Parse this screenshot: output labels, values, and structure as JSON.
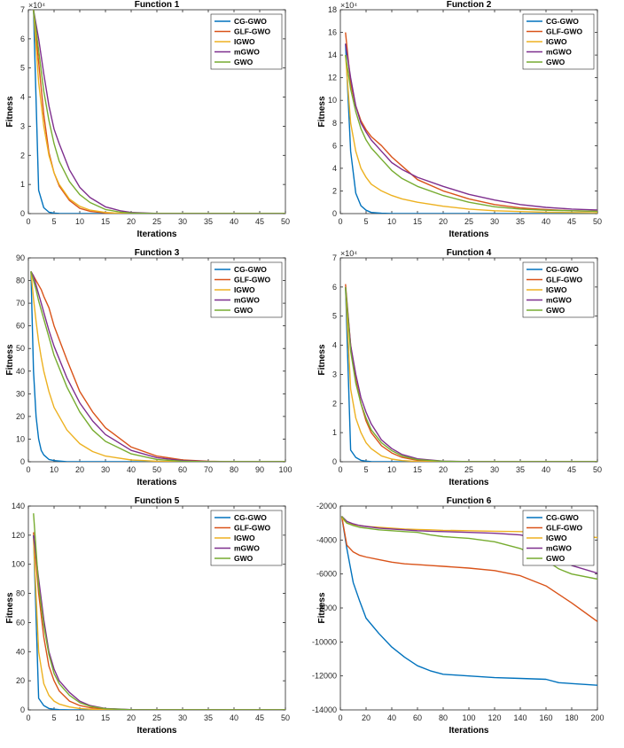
{
  "colors": {
    "CG-GWO": "#0072BD",
    "GLF-GWO": "#D95319",
    "IGWO": "#EDB120",
    "mGWO": "#7E2F8E",
    "GWO": "#77AC30"
  },
  "chart_data": [
    {
      "type": "line",
      "title": "Function 1",
      "xlabel": "Iterations",
      "ylabel": "Fitness",
      "xlim": [
        0,
        50
      ],
      "ylim": [
        0,
        70000
      ],
      "xticks": [
        0,
        5,
        10,
        15,
        20,
        25,
        30,
        35,
        40,
        45,
        50
      ],
      "yticks": [
        0,
        1,
        2,
        3,
        4,
        5,
        6,
        7
      ],
      "y_multiplier": "×10⁴",
      "legend": [
        "CG-GWO",
        "GLF-GWO",
        "IGWO",
        "mGWO",
        "GWO"
      ],
      "legend_position": "top-right",
      "x": [
        1,
        2,
        3,
        4,
        5,
        6,
        8,
        10,
        12,
        15,
        18,
        20,
        25,
        30,
        40,
        50
      ],
      "series": [
        {
          "name": "CG-GWO",
          "values": [
            70000,
            8000,
            2000,
            500,
            150,
            50,
            10,
            5,
            0,
            0,
            0,
            0,
            0,
            0,
            0,
            0
          ]
        },
        {
          "name": "GLF-GWO",
          "values": [
            70000,
            52000,
            34000,
            21000,
            14000,
            9500,
            4500,
            1800,
            800,
            200,
            50,
            20,
            0,
            0,
            0,
            0
          ]
        },
        {
          "name": "IGWO",
          "values": [
            70000,
            45000,
            30000,
            20000,
            14000,
            10000,
            5000,
            2500,
            1200,
            400,
            100,
            50,
            0,
            0,
            0,
            0
          ]
        },
        {
          "name": "mGWO",
          "values": [
            70000,
            60000,
            48000,
            37000,
            29000,
            24000,
            15000,
            9000,
            5500,
            2300,
            900,
            400,
            50,
            0,
            0,
            0
          ]
        },
        {
          "name": "GWO",
          "values": [
            70000,
            56000,
            42000,
            32000,
            24000,
            18000,
            11000,
            6500,
            3800,
            1400,
            500,
            200,
            20,
            0,
            0,
            0
          ]
        }
      ]
    },
    {
      "type": "line",
      "title": "Function 2",
      "xlabel": "Iterations",
      "ylabel": "Fitness",
      "xlim": [
        0,
        50
      ],
      "ylim": [
        0,
        180000
      ],
      "xticks": [
        0,
        5,
        10,
        15,
        20,
        25,
        30,
        35,
        40,
        45,
        50
      ],
      "yticks": [
        0,
        2,
        4,
        6,
        8,
        10,
        12,
        14,
        16,
        18
      ],
      "y_multiplier": "×10⁴",
      "legend": [
        "CG-GWO",
        "GLF-GWO",
        "IGWO",
        "mGWO",
        "GWO"
      ],
      "legend_position": "top-right",
      "x": [
        1,
        2,
        3,
        4,
        5,
        6,
        8,
        10,
        12,
        15,
        20,
        25,
        30,
        35,
        40,
        45,
        50
      ],
      "series": [
        {
          "name": "CG-GWO",
          "values": [
            150000,
            55000,
            18000,
            7000,
            3000,
            1000,
            300,
            100,
            0,
            0,
            0,
            0,
            0,
            0,
            0,
            0,
            0
          ]
        },
        {
          "name": "GLF-GWO",
          "values": [
            160000,
            115000,
            95000,
            82000,
            74000,
            68000,
            60000,
            50000,
            42000,
            30000,
            20000,
            13000,
            8000,
            5000,
            3500,
            2500,
            2000
          ]
        },
        {
          "name": "IGWO",
          "values": [
            140000,
            80000,
            55000,
            40000,
            32000,
            26000,
            20000,
            16000,
            13000,
            10000,
            6500,
            4000,
            2500,
            1800,
            1200,
            900,
            700
          ]
        },
        {
          "name": "mGWO",
          "values": [
            150000,
            120000,
            95000,
            80000,
            72000,
            65000,
            55000,
            45000,
            39000,
            32000,
            24000,
            17000,
            12000,
            8000,
            5500,
            4000,
            3200
          ]
        },
        {
          "name": "GWO",
          "values": [
            140000,
            110000,
            90000,
            75000,
            65000,
            58000,
            48000,
            38000,
            31000,
            24000,
            16000,
            10000,
            6000,
            4000,
            3000,
            2500,
            2000
          ]
        }
      ]
    },
    {
      "type": "line",
      "title": "Function 3",
      "xlabel": "Iterations",
      "ylabel": "Fitness",
      "xlim": [
        0,
        100
      ],
      "ylim": [
        0,
        90
      ],
      "xticks": [
        0,
        10,
        20,
        30,
        40,
        50,
        60,
        70,
        80,
        90,
        100
      ],
      "yticks": [
        0,
        10,
        20,
        30,
        40,
        50,
        60,
        70,
        80,
        90
      ],
      "y_multiplier": "",
      "legend": [
        "CG-GWO",
        "GLF-GWO",
        "IGWO",
        "mGWO",
        "GWO"
      ],
      "legend_position": "top-right",
      "x": [
        1,
        2,
        3,
        4,
        5,
        6,
        8,
        10,
        15,
        20,
        25,
        30,
        40,
        50,
        60,
        70,
        80,
        100
      ],
      "series": [
        {
          "name": "CG-GWO",
          "values": [
            84,
            40,
            20,
            10,
            5,
            3,
            1,
            0.5,
            0,
            0,
            0,
            0,
            0,
            0,
            0,
            0,
            0,
            0
          ]
        },
        {
          "name": "GLF-GWO",
          "values": [
            84,
            82,
            80,
            78,
            76,
            73,
            68,
            60,
            45,
            31,
            22,
            15,
            6.5,
            2.5,
            0.8,
            0.2,
            0,
            0
          ]
        },
        {
          "name": "IGWO",
          "values": [
            84,
            72,
            62,
            53,
            46,
            40,
            31,
            24,
            14,
            8,
            4.5,
            2.5,
            0.8,
            0.2,
            0,
            0,
            0,
            0
          ]
        },
        {
          "name": "mGWO",
          "values": [
            84,
            82,
            78,
            74,
            70,
            66,
            58,
            51,
            37,
            26,
            18,
            12,
            5,
            1.8,
            0.5,
            0.1,
            0,
            0
          ]
        },
        {
          "name": "GWO",
          "values": [
            84,
            80,
            76,
            71,
            67,
            63,
            55,
            47,
            33,
            22,
            14,
            9,
            3.5,
            1,
            0.2,
            0,
            0,
            0
          ]
        }
      ]
    },
    {
      "type": "line",
      "title": "Function 4",
      "xlabel": "Iterations",
      "ylabel": "Fitness",
      "xlim": [
        0,
        50
      ],
      "ylim": [
        0,
        70000
      ],
      "xticks": [
        0,
        5,
        10,
        15,
        20,
        25,
        30,
        35,
        40,
        45,
        50
      ],
      "yticks": [
        0,
        1,
        2,
        3,
        4,
        5,
        6,
        7
      ],
      "y_multiplier": "×10⁴",
      "legend": [
        "CG-GWO",
        "GLF-GWO",
        "IGWO",
        "mGWO",
        "GWO"
      ],
      "legend_position": "top-right",
      "x": [
        1,
        2,
        3,
        4,
        5,
        6,
        8,
        10,
        12,
        15,
        20,
        25,
        30,
        40,
        50
      ],
      "series": [
        {
          "name": "CG-GWO",
          "values": [
            60000,
            4000,
            1500,
            500,
            200,
            50,
            0,
            0,
            0,
            0,
            0,
            0,
            0,
            0,
            0
          ]
        },
        {
          "name": "GLF-GWO",
          "values": [
            61000,
            40000,
            28000,
            20000,
            14000,
            10000,
            5500,
            3000,
            1500,
            500,
            100,
            0,
            0,
            0,
            0
          ]
        },
        {
          "name": "IGWO",
          "values": [
            60000,
            25000,
            15000,
            10000,
            6500,
            4500,
            2000,
            900,
            400,
            100,
            0,
            0,
            0,
            0,
            0
          ]
        },
        {
          "name": "mGWO",
          "values": [
            60000,
            40000,
            30000,
            22000,
            17000,
            13000,
            7500,
            4500,
            2500,
            1000,
            200,
            50,
            0,
            0,
            0
          ]
        },
        {
          "name": "GWO",
          "values": [
            60000,
            38000,
            27000,
            20000,
            15000,
            11000,
            6500,
            3800,
            2000,
            700,
            150,
            30,
            0,
            0,
            0
          ]
        }
      ]
    },
    {
      "type": "line",
      "title": "Function 5",
      "xlabel": "Iterations",
      "ylabel": "Fitness",
      "xlim": [
        0,
        50
      ],
      "ylim": [
        0,
        140
      ],
      "xticks": [
        0,
        5,
        10,
        15,
        20,
        25,
        30,
        35,
        40,
        45,
        50
      ],
      "yticks": [
        0,
        20,
        40,
        60,
        80,
        100,
        120,
        140
      ],
      "y_multiplier": "",
      "legend": [
        "CG-GWO",
        "GLF-GWO",
        "IGWO",
        "mGWO",
        "GWO"
      ],
      "legend_position": "top-right",
      "x": [
        1,
        2,
        3,
        4,
        5,
        6,
        8,
        10,
        12,
        15,
        20,
        25,
        30,
        40,
        50
      ],
      "series": [
        {
          "name": "CG-GWO",
          "values": [
            120,
            8,
            3,
            1,
            0.5,
            0.2,
            0,
            0,
            0,
            0,
            0,
            0,
            0,
            0,
            0
          ]
        },
        {
          "name": "GLF-GWO",
          "values": [
            122,
            80,
            50,
            30,
            20,
            13,
            6,
            3,
            1.5,
            0.5,
            0,
            0,
            0,
            0,
            0
          ]
        },
        {
          "name": "IGWO",
          "values": [
            118,
            40,
            18,
            10,
            6,
            4,
            2,
            1,
            0.5,
            0,
            0,
            0,
            0,
            0,
            0
          ]
        },
        {
          "name": "mGWO",
          "values": [
            120,
            90,
            62,
            40,
            28,
            20,
            12,
            6,
            3,
            1,
            0.2,
            0,
            0,
            0,
            0
          ]
        },
        {
          "name": "GWO",
          "values": [
            135,
            85,
            58,
            38,
            25,
            18,
            10,
            5,
            2.5,
            0.8,
            0.1,
            0,
            0,
            0,
            0
          ]
        }
      ]
    },
    {
      "type": "line",
      "title": "Function 6",
      "xlabel": "Iterations",
      "ylabel": "Fitness",
      "xlim": [
        0,
        200
      ],
      "ylim": [
        -14000,
        -2000
      ],
      "xticks": [
        0,
        20,
        40,
        60,
        80,
        100,
        120,
        140,
        160,
        180,
        200
      ],
      "yticks": [
        -14000,
        -12000,
        -10000,
        -8000,
        -6000,
        -4000,
        -2000
      ],
      "y_multiplier": "",
      "legend": [
        "CG-GWO",
        "GLF-GWO",
        "IGWO",
        "mGWO",
        "GWO"
      ],
      "legend_position": "top-right",
      "x": [
        1,
        5,
        10,
        15,
        20,
        30,
        40,
        50,
        60,
        70,
        80,
        100,
        120,
        140,
        160,
        170,
        180,
        200
      ],
      "series": [
        {
          "name": "CG-GWO",
          "values": [
            -2600,
            -4500,
            -6500,
            -7600,
            -8600,
            -9500,
            -10300,
            -10900,
            -11400,
            -11700,
            -11900,
            -12000,
            -12100,
            -12150,
            -12200,
            -12400,
            -12450,
            -12550
          ]
        },
        {
          "name": "GLF-GWO",
          "values": [
            -2600,
            -4300,
            -4700,
            -4900,
            -5000,
            -5150,
            -5300,
            -5400,
            -5450,
            -5500,
            -5550,
            -5650,
            -5800,
            -6100,
            -6700,
            -7200,
            -7700,
            -8800
          ]
        },
        {
          "name": "IGWO",
          "values": [
            -2700,
            -3000,
            -3100,
            -3150,
            -3200,
            -3250,
            -3300,
            -3350,
            -3380,
            -3400,
            -3430,
            -3450,
            -3480,
            -3500,
            -3550,
            -3700,
            -3750,
            -3850
          ]
        },
        {
          "name": "mGWO",
          "values": [
            -2600,
            -2900,
            -3050,
            -3150,
            -3200,
            -3300,
            -3350,
            -3400,
            -3450,
            -3480,
            -3500,
            -3550,
            -3600,
            -3700,
            -4000,
            -4600,
            -5500,
            -5950
          ]
        },
        {
          "name": "GWO",
          "values": [
            -2600,
            -3000,
            -3150,
            -3250,
            -3300,
            -3400,
            -3450,
            -3500,
            -3550,
            -3700,
            -3800,
            -3900,
            -4100,
            -4500,
            -5200,
            -5700,
            -6000,
            -6300
          ]
        }
      ]
    }
  ]
}
